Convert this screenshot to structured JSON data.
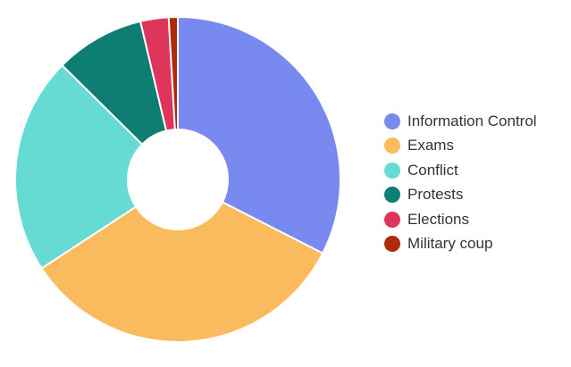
{
  "chart_data": {
    "type": "pie",
    "donut": true,
    "categories": [
      "Information Control",
      "Exams",
      "Conflict",
      "Protests",
      "Elections",
      "Military coup"
    ],
    "values": [
      32.5,
      33.3,
      21.6,
      8.9,
      2.8,
      0.9
    ],
    "colors": [
      "#7889f0",
      "#f9bb5e",
      "#66dbd3",
      "#0e7d72",
      "#e0355a",
      "#b02a08"
    ],
    "legend_position": "right"
  }
}
